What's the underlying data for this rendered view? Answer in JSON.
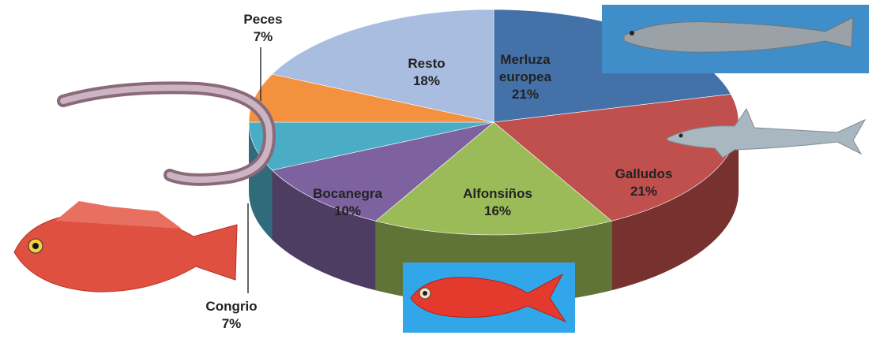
{
  "chart_data": {
    "type": "pie",
    "categories": [
      "Merluza europea",
      "Galludos",
      "Alfonsiños",
      "Bocanegra",
      "Congrio",
      "Peces",
      "Resto"
    ],
    "values": [
      21,
      21,
      16,
      10,
      7,
      7,
      18
    ],
    "value_labels": [
      "21%",
      "21%",
      "16%",
      "10%",
      "7%",
      "7%",
      "18%"
    ],
    "colors": [
      "#4471a8",
      "#c0504d",
      "#9bbb59",
      "#7e62a0",
      "#4bacc6",
      "#f3913f",
      "#a9bde0"
    ]
  }
}
